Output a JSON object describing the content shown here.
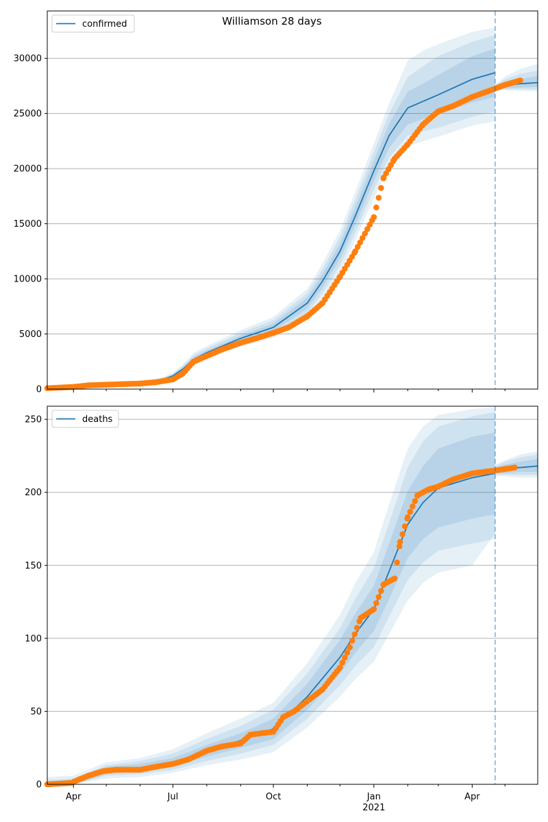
{
  "title": "Williamson 28 days",
  "chart_data": [
    {
      "type": "line",
      "legend": [
        "confirmed"
      ],
      "legend_position": "top-left",
      "grid": "horizontal",
      "ylim": [
        0,
        34300
      ],
      "yticks": [
        0,
        5000,
        10000,
        15000,
        20000,
        25000,
        30000
      ],
      "xlim": [
        "2020-03-08",
        "2021-05-31"
      ],
      "vline": "2021-04-22",
      "model_series": {
        "name": "confirmed",
        "x": [
          "2020-03-08",
          "2020-04-01",
          "2020-05-01",
          "2020-06-01",
          "2020-06-20",
          "2020-07-01",
          "2020-07-10",
          "2020-07-20",
          "2020-08-01",
          "2020-09-01",
          "2020-10-01",
          "2020-11-01",
          "2020-11-15",
          "2020-12-01",
          "2020-12-15",
          "2021-01-01",
          "2021-01-15",
          "2021-02-01",
          "2021-02-15",
          "2021-03-01",
          "2021-04-01",
          "2021-04-22"
        ],
        "values": [
          20,
          120,
          370,
          640,
          820,
          1200,
          1800,
          2700,
          3300,
          4600,
          5600,
          7800,
          9800,
          12500,
          15700,
          19800,
          23000,
          25500,
          26100,
          26700,
          28100,
          28700
        ],
        "band_inner": [
          [
            20,
            20
          ],
          [
            100,
            140
          ],
          [
            330,
            410
          ],
          [
            590,
            690
          ],
          [
            760,
            880
          ],
          [
            1100,
            1300
          ],
          [
            1650,
            1950
          ],
          [
            2500,
            2900
          ],
          [
            3100,
            3500
          ],
          [
            4350,
            4850
          ],
          [
            5250,
            5950
          ],
          [
            7300,
            8300
          ],
          [
            9200,
            10400
          ],
          [
            11800,
            13200
          ],
          [
            14900,
            16500
          ],
          [
            18900,
            20700
          ],
          [
            21900,
            24100
          ],
          [
            24000,
            27000
          ],
          [
            24500,
            27700
          ],
          [
            24900,
            28500
          ],
          [
            26000,
            30200
          ],
          [
            26500,
            30900
          ]
        ],
        "band_mid": [
          [
            15,
            25
          ],
          [
            80,
            160
          ],
          [
            300,
            450
          ],
          [
            540,
            740
          ],
          [
            700,
            940
          ],
          [
            1000,
            1400
          ],
          [
            1500,
            2100
          ],
          [
            2300,
            3100
          ],
          [
            2900,
            3700
          ],
          [
            4100,
            5100
          ],
          [
            4950,
            6250
          ],
          [
            6900,
            8700
          ],
          [
            8700,
            10900
          ],
          [
            11200,
            13800
          ],
          [
            14200,
            17200
          ],
          [
            18100,
            21500
          ],
          [
            21000,
            25000
          ],
          [
            23000,
            28300
          ],
          [
            23400,
            29300
          ],
          [
            23700,
            30200
          ],
          [
            24700,
            31500
          ],
          [
            25200,
            32100
          ]
        ],
        "band_outer": [
          [
            10,
            30
          ],
          [
            60,
            180
          ],
          [
            260,
            490
          ],
          [
            490,
            790
          ],
          [
            640,
            1000
          ],
          [
            920,
            1480
          ],
          [
            1380,
            2220
          ],
          [
            2100,
            3300
          ],
          [
            2700,
            3900
          ],
          [
            3850,
            5350
          ],
          [
            4650,
            6550
          ],
          [
            6500,
            9100
          ],
          [
            8200,
            11400
          ],
          [
            10600,
            14400
          ],
          [
            13500,
            17900
          ],
          [
            17300,
            22300
          ],
          [
            20100,
            25900
          ],
          [
            22000,
            29800
          ],
          [
            22500,
            30700
          ],
          [
            22900,
            31300
          ],
          [
            23900,
            32400
          ],
          [
            24300,
            32800
          ]
        ]
      },
      "forecast": {
        "x": [
          "2021-04-22",
          "2021-05-01",
          "2021-05-15",
          "2021-05-31"
        ],
        "values": [
          27400,
          27550,
          27700,
          27800
        ],
        "band_inner": [
          [
            27300,
            27500
          ],
          [
            27300,
            27850
          ],
          [
            27350,
            28150
          ],
          [
            27400,
            28400
          ]
        ],
        "band_mid": [
          [
            27250,
            27550
          ],
          [
            27200,
            28100
          ],
          [
            27200,
            28600
          ],
          [
            27200,
            28900
          ]
        ],
        "band_outer": [
          [
            27200,
            27600
          ],
          [
            27100,
            28350
          ],
          [
            27050,
            29050
          ],
          [
            27000,
            29500
          ]
        ]
      },
      "observed": {
        "x": [
          "2020-03-08",
          "2020-04-01",
          "2020-04-15",
          "2020-05-01",
          "2020-05-15",
          "2020-06-01",
          "2020-06-15",
          "2020-07-01",
          "2020-07-10",
          "2020-07-20",
          "2020-08-01",
          "2020-08-15",
          "2020-09-01",
          "2020-09-15",
          "2020-10-01",
          "2020-10-15",
          "2020-11-01",
          "2020-11-15",
          "2020-12-01",
          "2020-12-15",
          "2021-01-01",
          "2021-01-10",
          "2021-01-20",
          "2021-02-01",
          "2021-02-15",
          "2021-03-01",
          "2021-03-15",
          "2021-04-01",
          "2021-04-15",
          "2021-05-01",
          "2021-05-15"
        ],
        "values": [
          80,
          200,
          350,
          400,
          450,
          500,
          620,
          880,
          1400,
          2500,
          3000,
          3600,
          4200,
          4600,
          5100,
          5600,
          6600,
          7800,
          10200,
          12500,
          15600,
          19200,
          20900,
          22200,
          24000,
          25200,
          25700,
          26500,
          27000,
          27600,
          28000
        ]
      }
    },
    {
      "type": "line",
      "legend": [
        "deaths"
      ],
      "legend_position": "top-left",
      "grid": "horizontal",
      "ylim": [
        0,
        259
      ],
      "yticks": [
        0,
        50,
        100,
        150,
        200,
        250
      ],
      "xlim": [
        "2020-03-08",
        "2021-05-31"
      ],
      "xtick_labels": [
        "Apr",
        "Jul",
        "Oct",
        "Jan",
        "Apr"
      ],
      "xtick_year_label": "2021",
      "vline": "2021-04-22",
      "model_series": {
        "name": "deaths",
        "x": [
          "2020-03-08",
          "2020-04-01",
          "2020-05-01",
          "2020-06-01",
          "2020-07-01",
          "2020-08-01",
          "2020-09-01",
          "2020-10-01",
          "2020-11-01",
          "2020-12-01",
          "2020-12-15",
          "2021-01-01",
          "2021-01-15",
          "2021-02-01",
          "2021-02-15",
          "2021-03-01",
          "2021-04-01",
          "2021-04-22"
        ],
        "values": [
          0,
          1,
          9,
          11,
          15,
          23,
          30,
          38,
          60,
          87,
          103,
          120,
          146,
          178,
          193,
          203,
          210,
          213
        ],
        "band_inner": [
          [
            0,
            2
          ],
          [
            0,
            3
          ],
          [
            7,
            12
          ],
          [
            9,
            14
          ],
          [
            12,
            18
          ],
          [
            19,
            27
          ],
          [
            25,
            35
          ],
          [
            31,
            45
          ],
          [
            51,
            69
          ],
          [
            76,
            99
          ],
          [
            90,
            117
          ],
          [
            105,
            136
          ],
          [
            127,
            165
          ],
          [
            155,
            201
          ],
          [
            168,
            218
          ],
          [
            176,
            230
          ],
          [
            182,
            238
          ],
          [
            185,
            241
          ]
        ],
        "band_mid": [
          [
            0,
            3
          ],
          [
            0,
            4
          ],
          [
            6,
            13
          ],
          [
            7,
            16
          ],
          [
            10,
            21
          ],
          [
            16,
            31
          ],
          [
            21,
            40
          ],
          [
            27,
            51
          ],
          [
            45,
            76
          ],
          [
            68,
            107
          ],
          [
            81,
            127
          ],
          [
            94,
            148
          ],
          [
            115,
            179
          ],
          [
            140,
            217
          ],
          [
            152,
            235
          ],
          [
            160,
            245
          ],
          [
            165,
            252
          ],
          [
            168,
            255
          ]
        ],
        "band_outer": [
          [
            0,
            5
          ],
          [
            0,
            6
          ],
          [
            4,
            15
          ],
          [
            5,
            18
          ],
          [
            8,
            24
          ],
          [
            13,
            35
          ],
          [
            17,
            45
          ],
          [
            22,
            56
          ],
          [
            39,
            83
          ],
          [
            60,
            116
          ],
          [
            72,
            138
          ],
          [
            84,
            159
          ],
          [
            103,
            192
          ],
          [
            126,
            230
          ],
          [
            138,
            245
          ],
          [
            145,
            253
          ],
          [
            150,
            257
          ],
          [
            172,
            258
          ]
        ]
      },
      "forecast": {
        "x": [
          "2021-04-22",
          "2021-05-01",
          "2021-05-15",
          "2021-05-31"
        ],
        "values": [
          215,
          216,
          217,
          218
        ],
        "band_inner": [
          [
            213,
            217
          ],
          [
            213,
            219
          ],
          [
            214,
            221
          ],
          [
            214,
            223
          ]
        ],
        "band_mid": [
          [
            212,
            218
          ],
          [
            212,
            221
          ],
          [
            212,
            224
          ],
          [
            212,
            226
          ]
        ],
        "band_outer": [
          [
            211,
            219
          ],
          [
            211,
            222
          ],
          [
            210,
            226
          ],
          [
            210,
            228
          ]
        ]
      },
      "observed": {
        "x": [
          "2020-03-08",
          "2020-03-30",
          "2020-04-05",
          "2020-04-15",
          "2020-04-28",
          "2020-05-10",
          "2020-06-01",
          "2020-06-15",
          "2020-07-01",
          "2020-07-15",
          "2020-08-01",
          "2020-08-15",
          "2020-09-01",
          "2020-09-10",
          "2020-09-20",
          "2020-10-01",
          "2020-10-10",
          "2020-10-20",
          "2020-11-01",
          "2020-11-15",
          "2020-12-01",
          "2020-12-10",
          "2020-12-20",
          "2021-01-01",
          "2021-01-10",
          "2021-01-20",
          "2021-01-25",
          "2021-02-01",
          "2021-02-10",
          "2021-02-20",
          "2021-03-01",
          "2021-03-15",
          "2021-04-01",
          "2021-04-22",
          "2021-05-10"
        ],
        "values": [
          0,
          1,
          3,
          6,
          9,
          10,
          10,
          12,
          14,
          17,
          23,
          26,
          28,
          34,
          35,
          36,
          46,
          50,
          57,
          65,
          80,
          94,
          114,
          120,
          137,
          141,
          166,
          183,
          198,
          202,
          204,
          209,
          213,
          215,
          217
        ]
      }
    }
  ],
  "colors": {
    "series": "#1f77b4",
    "observed": "#ff7f0e",
    "band": "#1f77b4",
    "grid": "#b0b0b0"
  }
}
